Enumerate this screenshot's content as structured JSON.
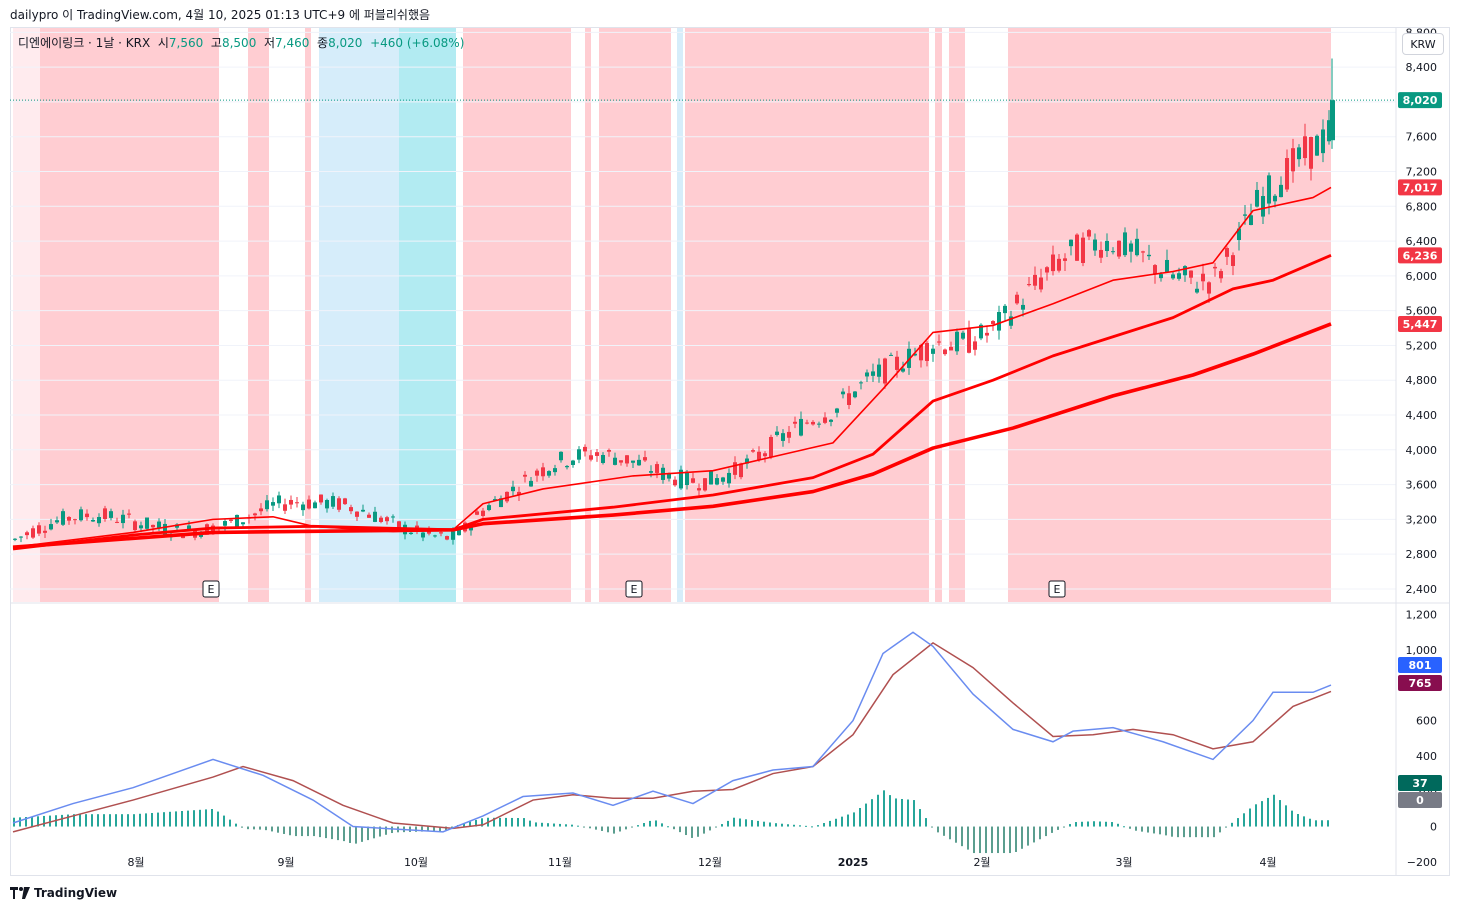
{
  "header": {
    "text": "dailypro 이 TradingView.com, 4월 10, 2025 01:13 UTC+9 에 퍼블리쉬했음"
  },
  "legend": {
    "symbol": "디엔에이링크 · 1날 · KRX",
    "open_label": "시",
    "open": "7,560",
    "high_label": "고",
    "high": "8,500",
    "low_label": "저",
    "low": "7,460",
    "close_label": "종",
    "close": "8,020",
    "change": "+460 (+6.08%)"
  },
  "currency": "KRW",
  "footer": {
    "brand": "TradingView"
  },
  "colors": {
    "up": "#089981",
    "down": "#f23645",
    "ma": "#ff0000",
    "macd": "#6a8cf0",
    "signal": "#b05050",
    "bg_red": "#ffcdd2",
    "bg_blue": "#d6edfa",
    "bg_cyan": "#b2ebf2"
  },
  "chart_data": [
    {
      "type": "candlestick",
      "x_ticks": [
        "8월",
        "9월",
        "10월",
        "11월",
        "12월",
        "2025",
        "2월",
        "3월",
        "4월"
      ],
      "y_ticks": [
        "8,800",
        "8,400",
        "8,000",
        "7,600",
        "7,200",
        "6,800",
        "6,400",
        "6,000",
        "5,600",
        "5,200",
        "4,800",
        "4,400",
        "4,000",
        "3,600",
        "3,200",
        "2,800",
        "2,400"
      ],
      "ylim": [
        2250,
        8850
      ],
      "price_labels": [
        {
          "value": 8020,
          "text": "8,020",
          "color": "#089981"
        },
        {
          "value": 7017,
          "text": "7,017",
          "color": "#f23645"
        },
        {
          "value": 6236,
          "text": "6,236",
          "color": "#f23645"
        },
        {
          "value": 5447,
          "text": "5,447",
          "color": "#f23645"
        }
      ],
      "last": {
        "open": 7560,
        "high": 8500,
        "low": 7460,
        "close": 8020
      },
      "events": [
        "E",
        "E",
        "E"
      ],
      "ma_keypoints": [
        {
          "name": "MA short",
          "points": [
            [
              0,
              2880
            ],
            [
              120,
              3050
            ],
            [
              200,
              3200
            ],
            [
              260,
              3230
            ],
            [
              300,
              3120
            ],
            [
              380,
              3060
            ],
            [
              440,
              3080
            ],
            [
              470,
              3380
            ],
            [
              530,
              3550
            ],
            [
              620,
              3700
            ],
            [
              700,
              3760
            ],
            [
              760,
              3920
            ],
            [
              820,
              4080
            ],
            [
              870,
              4700
            ],
            [
              920,
              5350
            ],
            [
              980,
              5430
            ],
            [
              1040,
              5680
            ],
            [
              1100,
              5950
            ],
            [
              1160,
              6050
            ],
            [
              1200,
              6150
            ],
            [
              1240,
              6750
            ],
            [
              1300,
              6900
            ],
            [
              1318,
              7017
            ]
          ]
        },
        {
          "name": "MA mid",
          "points": [
            [
              0,
              2860
            ],
            [
              120,
              3020
            ],
            [
              200,
              3100
            ],
            [
              300,
              3120
            ],
            [
              440,
              3080
            ],
            [
              470,
              3200
            ],
            [
              600,
              3340
            ],
            [
              700,
              3480
            ],
            [
              800,
              3680
            ],
            [
              860,
              3950
            ],
            [
              920,
              4560
            ],
            [
              980,
              4800
            ],
            [
              1040,
              5080
            ],
            [
              1100,
              5300
            ],
            [
              1160,
              5520
            ],
            [
              1220,
              5850
            ],
            [
              1260,
              5950
            ],
            [
              1318,
              6236
            ]
          ]
        },
        {
          "name": "MA long",
          "points": [
            [
              0,
              2880
            ],
            [
              200,
              3050
            ],
            [
              440,
              3080
            ],
            [
              470,
              3150
            ],
            [
              600,
              3250
            ],
            [
              700,
              3350
            ],
            [
              800,
              3520
            ],
            [
              860,
              3720
            ],
            [
              920,
              4020
            ],
            [
              1000,
              4250
            ],
            [
              1100,
              4620
            ],
            [
              1180,
              4860
            ],
            [
              1240,
              5100
            ],
            [
              1318,
              5447
            ]
          ]
        }
      ]
    },
    {
      "type": "macd",
      "y_ticks": [
        "1,200",
        "1,000",
        "800",
        "600",
        "400",
        "200",
        "0",
        "−200"
      ],
      "ylim": [
        -280,
        1260
      ],
      "value_labels": [
        {
          "value": 801,
          "text": "801",
          "color": "#2962ff"
        },
        {
          "value": 765,
          "text": "765",
          "color": "#880e4f"
        },
        {
          "value": 37,
          "text": "37",
          "color": "#00695c"
        },
        {
          "value": 0,
          "text": "0",
          "color": "#787b86"
        }
      ],
      "macd_keypoints": [
        [
          0,
          20
        ],
        [
          60,
          130
        ],
        [
          120,
          220
        ],
        [
          200,
          380
        ],
        [
          250,
          290
        ],
        [
          300,
          150
        ],
        [
          340,
          0
        ],
        [
          400,
          -20
        ],
        [
          430,
          -30
        ],
        [
          470,
          60
        ],
        [
          510,
          170
        ],
        [
          560,
          190
        ],
        [
          600,
          120
        ],
        [
          640,
          200
        ],
        [
          680,
          130
        ],
        [
          720,
          260
        ],
        [
          760,
          320
        ],
        [
          800,
          340
        ],
        [
          840,
          600
        ],
        [
          870,
          980
        ],
        [
          900,
          1100
        ],
        [
          920,
          1020
        ],
        [
          960,
          750
        ],
        [
          1000,
          550
        ],
        [
          1040,
          480
        ],
        [
          1060,
          540
        ],
        [
          1100,
          560
        ],
        [
          1150,
          480
        ],
        [
          1200,
          380
        ],
        [
          1240,
          600
        ],
        [
          1260,
          760
        ],
        [
          1300,
          760
        ],
        [
          1318,
          801
        ]
      ],
      "signal_keypoints": [
        [
          0,
          -30
        ],
        [
          60,
          60
        ],
        [
          120,
          150
        ],
        [
          200,
          280
        ],
        [
          230,
          340
        ],
        [
          280,
          260
        ],
        [
          330,
          120
        ],
        [
          380,
          20
        ],
        [
          440,
          -10
        ],
        [
          470,
          10
        ],
        [
          520,
          150
        ],
        [
          560,
          180
        ],
        [
          600,
          160
        ],
        [
          640,
          160
        ],
        [
          680,
          200
        ],
        [
          720,
          210
        ],
        [
          760,
          300
        ],
        [
          800,
          340
        ],
        [
          840,
          520
        ],
        [
          880,
          860
        ],
        [
          920,
          1040
        ],
        [
          960,
          900
        ],
        [
          1000,
          700
        ],
        [
          1040,
          510
        ],
        [
          1080,
          520
        ],
        [
          1120,
          550
        ],
        [
          1160,
          520
        ],
        [
          1200,
          440
        ],
        [
          1240,
          480
        ],
        [
          1280,
          680
        ],
        [
          1318,
          765
        ]
      ]
    }
  ]
}
